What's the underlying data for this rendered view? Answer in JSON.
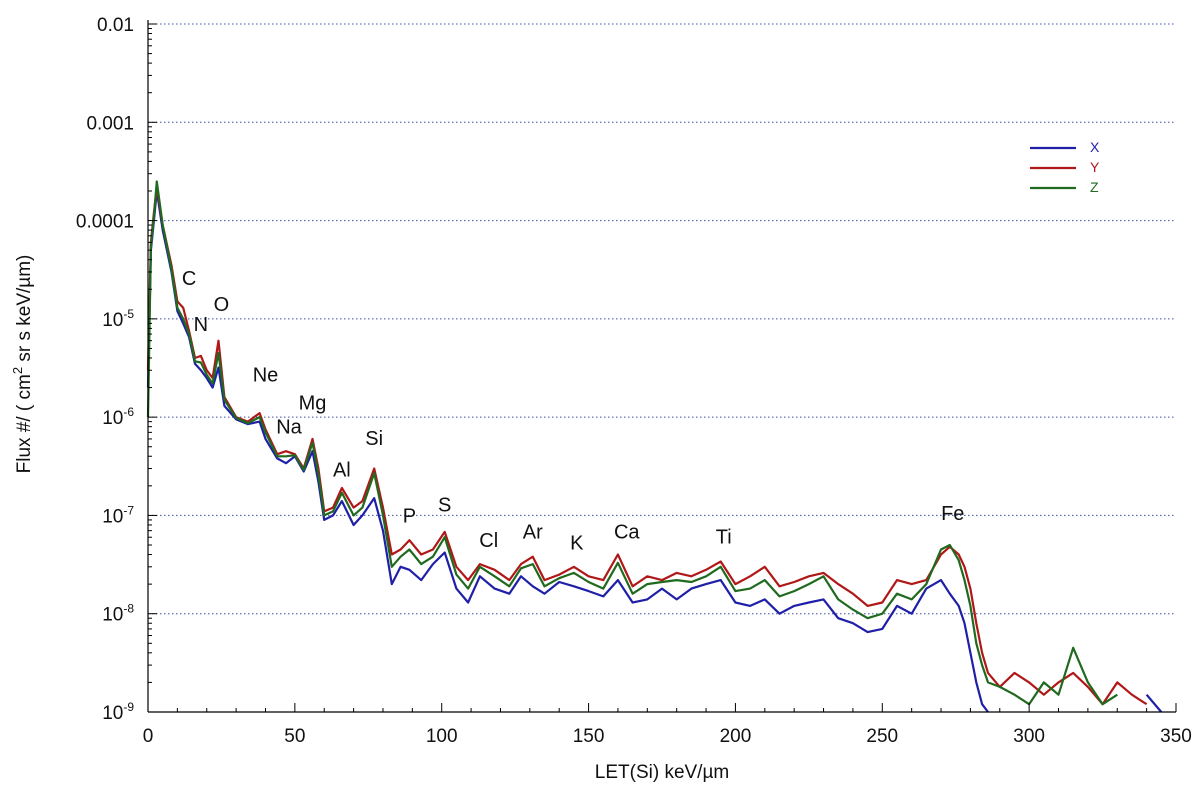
{
  "chart_data": {
    "type": "line",
    "title": "",
    "xlabel": "LET(Si) keV/µm",
    "ylabel_prefix": "Flux #/ ( cm",
    "ylabel_sup": "2",
    "ylabel_suffix": " sr s keV/µm)",
    "xlim": [
      0,
      350
    ],
    "ylim": [
      1e-09,
      0.01
    ],
    "yscale": "log",
    "grid": "horizontal dotted",
    "legend_position": "top-right",
    "x_ticks": [
      "0",
      "50",
      "100",
      "150",
      "200",
      "250",
      "300",
      "350"
    ],
    "y_ticks": [
      {
        "base": "10",
        "exp": "-9"
      },
      {
        "base": "10",
        "exp": "-8"
      },
      {
        "base": "10",
        "exp": "-7"
      },
      {
        "base": "10",
        "exp": "-6"
      },
      {
        "base": "10",
        "exp": "-5"
      },
      {
        "base": "",
        "exp": "",
        "text": "0.0001"
      },
      {
        "base": "",
        "exp": "",
        "text": "0.001"
      },
      {
        "base": "",
        "exp": "",
        "text": "0.01"
      }
    ],
    "annotations": [
      {
        "text": "C",
        "x": 14,
        "y": 2.2e-05
      },
      {
        "text": "N",
        "x": 18,
        "y": 7.5e-06
      },
      {
        "text": "O",
        "x": 25,
        "y": 1.2e-05
      },
      {
        "text": "Ne",
        "x": 40,
        "y": 2.3e-06
      },
      {
        "text": "Na",
        "x": 48,
        "y": 6.8e-07
      },
      {
        "text": "Mg",
        "x": 56,
        "y": 1.2e-06
      },
      {
        "text": "Al",
        "x": 66,
        "y": 2.5e-07
      },
      {
        "text": "Si",
        "x": 77,
        "y": 5.2e-07
      },
      {
        "text": "P",
        "x": 89,
        "y": 8.5e-08
      },
      {
        "text": "S",
        "x": 101,
        "y": 1.1e-07
      },
      {
        "text": "Cl",
        "x": 116,
        "y": 4.8e-08
      },
      {
        "text": "Ar",
        "x": 131,
        "y": 5.8e-08
      },
      {
        "text": "K",
        "x": 146,
        "y": 4.5e-08
      },
      {
        "text": "Ca",
        "x": 163,
        "y": 5.8e-08
      },
      {
        "text": "Ti",
        "x": 196,
        "y": 5.2e-08
      },
      {
        "text": "Fe",
        "x": 274,
        "y": 9e-08
      }
    ],
    "series": [
      {
        "name": "X",
        "color": "#1f1fa8",
        "x": [
          0,
          1,
          2,
          3,
          5,
          8,
          10,
          12,
          14,
          16,
          18,
          20,
          22,
          24,
          26,
          30,
          34,
          38,
          40,
          44,
          47,
          50,
          53,
          56,
          58,
          60,
          63,
          66,
          70,
          73,
          77,
          80,
          83,
          86,
          89,
          93,
          97,
          101,
          105,
          109,
          113,
          118,
          123,
          127,
          131,
          135,
          140,
          145,
          150,
          155,
          160,
          165,
          170,
          175,
          180,
          185,
          190,
          195,
          200,
          205,
          210,
          215,
          220,
          225,
          230,
          235,
          240,
          245,
          250,
          255,
          260,
          265,
          270,
          273,
          276,
          278,
          280,
          282,
          284,
          286,
          290,
          295,
          300,
          305,
          310,
          315,
          320,
          325,
          330,
          335,
          340,
          345,
          348
        ],
        "y": [
          2e-06,
          5e-05,
          0.0001,
          0.0002,
          8e-05,
          3e-05,
          1.2e-05,
          9e-06,
          6.5e-06,
          3.5e-06,
          3e-06,
          2.5e-06,
          2e-06,
          3.2e-06,
          1.3e-06,
          9.5e-07,
          8.5e-07,
          9e-07,
          6e-07,
          3.8e-07,
          3.4e-07,
          4e-07,
          2.8e-07,
          4.5e-07,
          2.2e-07,
          9e-08,
          1e-07,
          1.4e-07,
          8e-08,
          1e-07,
          1.5e-07,
          7e-08,
          2e-08,
          3e-08,
          2.8e-08,
          2.2e-08,
          3.2e-08,
          4.2e-08,
          1.8e-08,
          1.3e-08,
          2.4e-08,
          1.8e-08,
          1.6e-08,
          2.4e-08,
          1.9e-08,
          1.6e-08,
          2.1e-08,
          1.9e-08,
          1.7e-08,
          1.5e-08,
          2.2e-08,
          1.3e-08,
          1.4e-08,
          1.8e-08,
          1.4e-08,
          1.8e-08,
          2e-08,
          2.2e-08,
          1.3e-08,
          1.2e-08,
          1.4e-08,
          1e-08,
          1.2e-08,
          1.3e-08,
          1.4e-08,
          9e-09,
          8e-09,
          6.5e-09,
          7e-09,
          1.2e-08,
          1e-08,
          1.8e-08,
          2.2e-08,
          1.6e-08,
          1.2e-08,
          8e-09,
          4e-09,
          2e-09,
          1.2e-09,
          1e-09,
          null,
          null,
          null,
          null,
          null,
          null,
          null,
          null,
          null,
          null,
          1.5e-09,
          1e-09,
          null
        ],
        "description_unused": ""
      },
      {
        "name": "Y",
        "color": "#b01818",
        "x": [
          0,
          1,
          2,
          3,
          5,
          8,
          10,
          12,
          14,
          16,
          18,
          20,
          22,
          24,
          26,
          30,
          34,
          38,
          40,
          44,
          47,
          50,
          53,
          56,
          58,
          60,
          63,
          66,
          70,
          73,
          77,
          80,
          83,
          86,
          89,
          93,
          97,
          101,
          105,
          109,
          113,
          118,
          123,
          127,
          131,
          135,
          140,
          145,
          150,
          155,
          160,
          165,
          170,
          175,
          180,
          185,
          190,
          195,
          200,
          205,
          210,
          215,
          220,
          225,
          230,
          235,
          240,
          245,
          250,
          255,
          260,
          265,
          270,
          273,
          276,
          278,
          280,
          282,
          284,
          286,
          290,
          295,
          300,
          305,
          310,
          315,
          320,
          325,
          330,
          335,
          340,
          345,
          348
        ],
        "y": [
          3e-06,
          6e-05,
          0.00012,
          0.00022,
          9e-05,
          3.5e-05,
          1.5e-05,
          1.3e-05,
          7.5e-06,
          4e-06,
          4.2e-06,
          3e-06,
          2.5e-06,
          6e-06,
          1.6e-06,
          1e-06,
          9e-07,
          1.1e-06,
          7.5e-07,
          4.2e-07,
          4.5e-07,
          4.2e-07,
          3e-07,
          6e-07,
          3e-07,
          1.1e-07,
          1.2e-07,
          1.9e-07,
          1.2e-07,
          1.4e-07,
          3e-07,
          1.2e-07,
          4e-08,
          4.5e-08,
          5.6e-08,
          4e-08,
          4.5e-08,
          6.8e-08,
          3e-08,
          2.2e-08,
          3.2e-08,
          2.8e-08,
          2.2e-08,
          3.2e-08,
          3.8e-08,
          2.2e-08,
          2.5e-08,
          3e-08,
          2.4e-08,
          2.2e-08,
          4e-08,
          1.9e-08,
          2.4e-08,
          2.2e-08,
          2.6e-08,
          2.4e-08,
          2.8e-08,
          3.4e-08,
          2e-08,
          2.4e-08,
          3e-08,
          1.9e-08,
          2.1e-08,
          2.4e-08,
          2.6e-08,
          2e-08,
          1.6e-08,
          1.2e-08,
          1.3e-08,
          2.2e-08,
          2e-08,
          2.2e-08,
          4e-08,
          4.8e-08,
          4e-08,
          3e-08,
          1.8e-08,
          8e-09,
          4e-09,
          2.5e-09,
          1.8e-09,
          2.5e-09,
          2e-09,
          1.5e-09,
          2e-09,
          2.5e-09,
          1.8e-09,
          1.2e-09,
          2e-09,
          1.5e-09,
          1.2e-09,
          null,
          null
        ]
      },
      {
        "name": "Z",
        "color": "#1f6a1f",
        "x": [
          0,
          1,
          2,
          3,
          5,
          8,
          10,
          12,
          14,
          16,
          18,
          20,
          22,
          24,
          26,
          30,
          34,
          38,
          40,
          44,
          47,
          50,
          53,
          56,
          58,
          60,
          63,
          66,
          70,
          73,
          77,
          80,
          83,
          86,
          89,
          93,
          97,
          101,
          105,
          109,
          113,
          118,
          123,
          127,
          131,
          135,
          140,
          145,
          150,
          155,
          160,
          165,
          170,
          175,
          180,
          185,
          190,
          195,
          200,
          205,
          210,
          215,
          220,
          225,
          230,
          235,
          240,
          245,
          250,
          255,
          260,
          265,
          270,
          273,
          276,
          278,
          280,
          282,
          284,
          286,
          290,
          295,
          300,
          305,
          310,
          315,
          320,
          325,
          330,
          335,
          340,
          345,
          348
        ],
        "y": [
          1e-06,
          5.5e-05,
          0.00011,
          0.00025,
          9e-05,
          3.2e-05,
          1.3e-05,
          1e-05,
          7e-06,
          3.7e-06,
          3.6e-06,
          2.7e-06,
          2.2e-06,
          4.5e-06,
          1.5e-06,
          9.8e-07,
          8.7e-07,
          1e-06,
          7e-07,
          4e-07,
          4e-07,
          4.1e-07,
          2.9e-07,
          5.5e-07,
          2.6e-07,
          1e-07,
          1.1e-07,
          1.7e-07,
          1e-07,
          1.2e-07,
          2.7e-07,
          1e-07,
          3e-08,
          3.8e-08,
          4.5e-08,
          3.2e-08,
          3.8e-08,
          6e-08,
          2.5e-08,
          1.8e-08,
          3e-08,
          2.4e-08,
          1.9e-08,
          2.9e-08,
          3.2e-08,
          1.9e-08,
          2.3e-08,
          2.6e-08,
          2.1e-08,
          1.8e-08,
          3.3e-08,
          1.6e-08,
          2e-08,
          2.1e-08,
          2.2e-08,
          2.1e-08,
          2.4e-08,
          3e-08,
          1.7e-08,
          1.8e-08,
          2.2e-08,
          1.5e-08,
          1.7e-08,
          2e-08,
          2.4e-08,
          1.4e-08,
          1.1e-08,
          9e-09,
          1e-08,
          1.6e-08,
          1.4e-08,
          2e-08,
          4.5e-08,
          5e-08,
          3.5e-08,
          2.2e-08,
          1.2e-08,
          5e-09,
          3e-09,
          2e-09,
          1.8e-09,
          1.5e-09,
          1.2e-09,
          2e-09,
          1.5e-09,
          4.5e-09,
          2e-09,
          1.2e-09,
          1.5e-09,
          null,
          null,
          null,
          null
        ]
      }
    ]
  },
  "legend": [
    {
      "label": "X",
      "color": "#1f1fa8"
    },
    {
      "label": "Y",
      "color": "#b01818"
    },
    {
      "label": "Z",
      "color": "#1f6a1f"
    }
  ]
}
